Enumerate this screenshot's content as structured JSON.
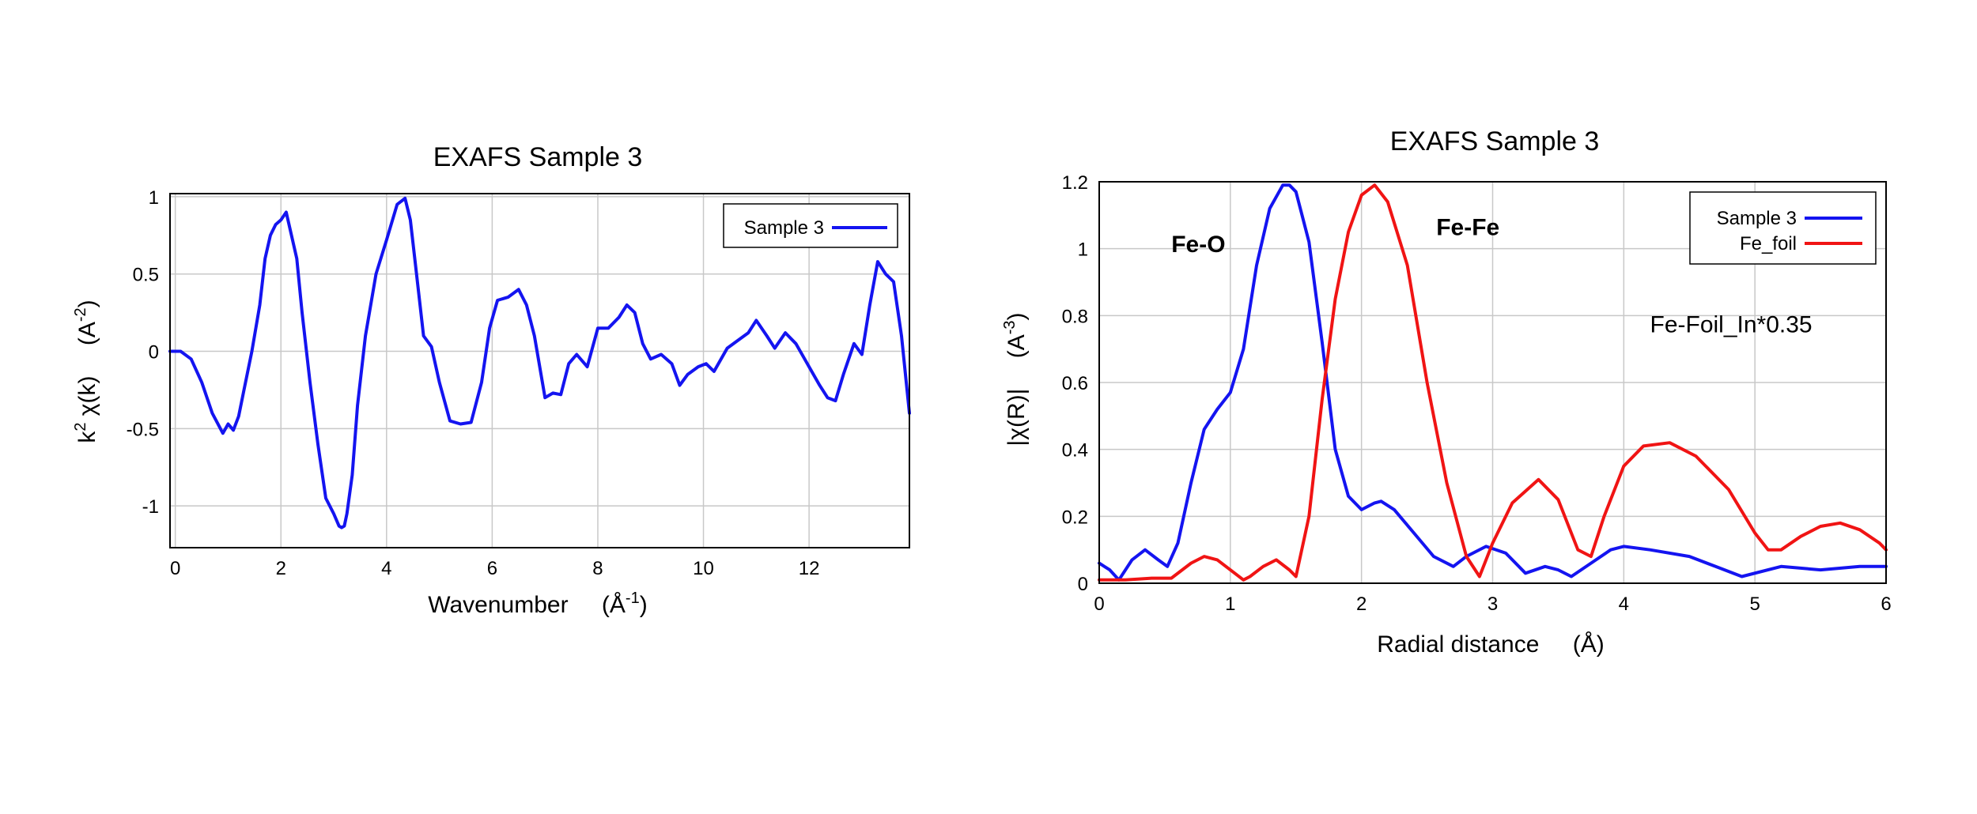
{
  "chart_data": [
    {
      "type": "line",
      "title": "EXAFS Sample 3",
      "xlabel": "Wavenumber",
      "xunit_base": "(Å",
      "xunit_exp": "-1",
      "xunit_tail": ")",
      "ylabel": "k",
      "ylabel_exp": "2",
      "ylabel_tail": " χ(k)",
      "yunit_base": "(A",
      "yunit_exp": "-2",
      "yunit_tail": ")",
      "xlim": [
        -0.1,
        13.9
      ],
      "ylim": [
        -1.27,
        1.02
      ],
      "xticks": [
        0,
        2,
        4,
        6,
        8,
        10,
        12
      ],
      "yticks": [
        1,
        0.5,
        0,
        -0.5,
        -1
      ],
      "ytick_labels": [
        "1",
        "0.5",
        "0",
        "-0.5",
        "-1"
      ],
      "grid": true,
      "legend": "top-right",
      "colors": {
        "Sample 3": "#1414f0"
      },
      "series": [
        {
          "name": "Sample 3",
          "color": "#1414f0",
          "x": [
            -0.1,
            0.1,
            0.3,
            0.5,
            0.7,
            0.9,
            1.0,
            1.1,
            1.2,
            1.3,
            1.45,
            1.6,
            1.7,
            1.8,
            1.9,
            2.0,
            2.1,
            2.2,
            2.3,
            2.4,
            2.55,
            2.7,
            2.85,
            3.0,
            3.1,
            3.15,
            3.2,
            3.25,
            3.35,
            3.45,
            3.6,
            3.8,
            4.0,
            4.2,
            4.35,
            4.45,
            4.55,
            4.7,
            4.85,
            5.0,
            5.2,
            5.4,
            5.6,
            5.8,
            5.95,
            6.1,
            6.3,
            6.5,
            6.65,
            6.8,
            7.0,
            7.15,
            7.3,
            7.45,
            7.6,
            7.8,
            8.0,
            8.2,
            8.4,
            8.55,
            8.7,
            8.85,
            9.0,
            9.2,
            9.4,
            9.55,
            9.7,
            9.9,
            10.05,
            10.2,
            10.45,
            10.65,
            10.85,
            11.0,
            11.2,
            11.35,
            11.55,
            11.75,
            12.0,
            12.2,
            12.35,
            12.5,
            12.65,
            12.85,
            13.0,
            13.15,
            13.3,
            13.45,
            13.6,
            13.75,
            13.9
          ],
          "y": [
            0.0,
            0.0,
            -0.05,
            -0.2,
            -0.4,
            -0.53,
            -0.47,
            -0.51,
            -0.42,
            -0.25,
            0.0,
            0.3,
            0.6,
            0.75,
            0.82,
            0.85,
            0.9,
            0.75,
            0.6,
            0.25,
            -0.2,
            -0.6,
            -0.95,
            -1.05,
            -1.13,
            -1.14,
            -1.13,
            -1.05,
            -0.8,
            -0.35,
            0.1,
            0.5,
            0.72,
            0.95,
            0.99,
            0.85,
            0.55,
            0.1,
            0.03,
            -0.2,
            -0.45,
            -0.47,
            -0.46,
            -0.2,
            0.15,
            0.33,
            0.35,
            0.4,
            0.3,
            0.1,
            -0.3,
            -0.27,
            -0.28,
            -0.08,
            -0.02,
            -0.1,
            0.15,
            0.15,
            0.22,
            0.3,
            0.25,
            0.05,
            -0.05,
            -0.02,
            -0.08,
            -0.22,
            -0.15,
            -0.1,
            -0.08,
            -0.13,
            0.02,
            0.07,
            0.12,
            0.2,
            0.1,
            0.02,
            0.12,
            0.05,
            -0.1,
            -0.22,
            -0.3,
            -0.32,
            -0.15,
            0.05,
            -0.02,
            0.3,
            0.58,
            0.5,
            0.45,
            0.1,
            -0.4
          ]
        }
      ]
    },
    {
      "type": "line",
      "title": "EXAFS Sample 3",
      "xlabel": "Radial distance",
      "xunit": "(Å)",
      "ylabel": "|χ(R)|",
      "yunit_base": "(A",
      "yunit_exp": "-3",
      "yunit_tail": ")",
      "xlim": [
        0,
        6
      ],
      "ylim": [
        0,
        1.2
      ],
      "xticks": [
        0,
        1,
        2,
        3,
        4,
        5,
        6
      ],
      "yticks": [
        0,
        0.2,
        0.4,
        0.6,
        0.8,
        1,
        1.2
      ],
      "ytick_labels": [
        "0",
        "0.2",
        "0.4",
        "0.6",
        "0.8",
        "1",
        "1.2"
      ],
      "grid": true,
      "legend": "top-right",
      "annotations": [
        {
          "text": "Fe-O",
          "x": 0.55,
          "y": 0.99,
          "bold": true
        },
        {
          "text": "Fe-Fe",
          "x": 2.57,
          "y": 1.04,
          "bold": true
        },
        {
          "text": "Fe-Foil_In*0.35",
          "x": 4.2,
          "y": 0.75,
          "bold": false
        }
      ],
      "colors": {
        "Sample 3": "#1414f0",
        "Fe_foil": "#f01414"
      },
      "series": [
        {
          "name": "Sample 3",
          "color": "#1414f0",
          "x": [
            0,
            0.08,
            0.15,
            0.25,
            0.35,
            0.45,
            0.52,
            0.6,
            0.7,
            0.8,
            0.9,
            1.0,
            1.1,
            1.2,
            1.3,
            1.4,
            1.45,
            1.5,
            1.6,
            1.7,
            1.8,
            1.9,
            2.0,
            2.1,
            2.15,
            2.25,
            2.4,
            2.55,
            2.7,
            2.8,
            2.95,
            3.1,
            3.25,
            3.4,
            3.5,
            3.6,
            3.75,
            3.9,
            4.0,
            4.2,
            4.5,
            4.7,
            4.9,
            5.2,
            5.5,
            5.8,
            6.0
          ],
          "y": [
            0.06,
            0.04,
            0.01,
            0.07,
            0.1,
            0.07,
            0.05,
            0.12,
            0.3,
            0.46,
            0.52,
            0.57,
            0.7,
            0.95,
            1.12,
            1.19,
            1.19,
            1.17,
            1.02,
            0.72,
            0.4,
            0.26,
            0.22,
            0.24,
            0.245,
            0.22,
            0.15,
            0.08,
            0.05,
            0.08,
            0.11,
            0.09,
            0.03,
            0.05,
            0.04,
            0.02,
            0.06,
            0.1,
            0.11,
            0.1,
            0.08,
            0.05,
            0.02,
            0.05,
            0.04,
            0.05,
            0.05
          ]
        },
        {
          "name": "Fe_foil",
          "color": "#f01414",
          "x": [
            0,
            0.2,
            0.4,
            0.55,
            0.7,
            0.8,
            0.9,
            1.0,
            1.1,
            1.15,
            1.25,
            1.35,
            1.45,
            1.5,
            1.6,
            1.7,
            1.8,
            1.9,
            2.0,
            2.1,
            2.2,
            2.35,
            2.5,
            2.65,
            2.8,
            2.9,
            3.0,
            3.15,
            3.35,
            3.5,
            3.65,
            3.75,
            3.85,
            4.0,
            4.15,
            4.35,
            4.55,
            4.8,
            5.0,
            5.1,
            5.2,
            5.35,
            5.5,
            5.65,
            5.8,
            5.95,
            6.0
          ],
          "y": [
            0.01,
            0.01,
            0.015,
            0.015,
            0.06,
            0.08,
            0.07,
            0.04,
            0.01,
            0.02,
            0.05,
            0.07,
            0.04,
            0.02,
            0.2,
            0.55,
            0.85,
            1.05,
            1.16,
            1.19,
            1.14,
            0.95,
            0.6,
            0.3,
            0.08,
            0.02,
            0.12,
            0.24,
            0.31,
            0.25,
            0.1,
            0.08,
            0.2,
            0.35,
            0.41,
            0.42,
            0.38,
            0.28,
            0.15,
            0.1,
            0.1,
            0.14,
            0.17,
            0.18,
            0.16,
            0.12,
            0.1
          ]
        }
      ]
    }
  ]
}
